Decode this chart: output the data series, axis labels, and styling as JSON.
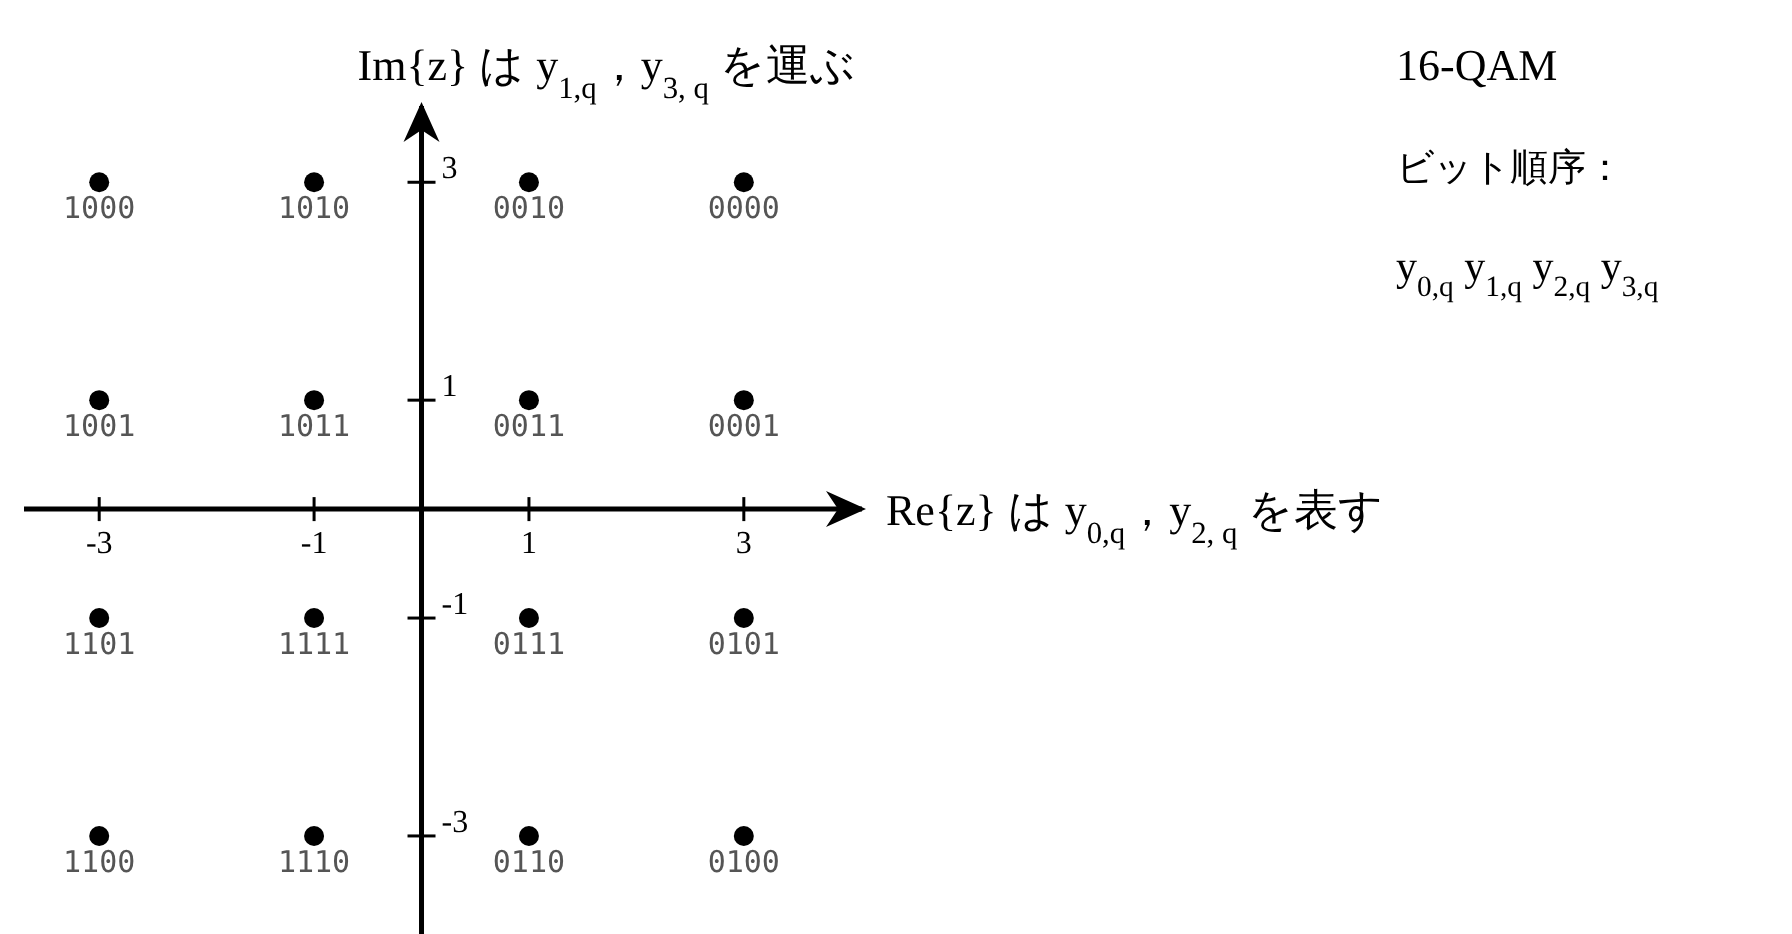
{
  "chart_data": {
    "type": "scatter",
    "title": "16-QAM",
    "subtitle": "ビット順序：",
    "xlabel": "Re{z}  は y$_{0,q}$，y$_{2, q}$ を表す",
    "ylabel": "Im{z}  は y$_{1,q}$，y$_{3, q}$ を運ぶ",
    "x": [
      -3,
      -1,
      1,
      3,
      -3,
      -1,
      1,
      3,
      -3,
      -1,
      1,
      3,
      -3,
      -1,
      1,
      3
    ],
    "values": [
      3,
      3,
      3,
      3,
      1,
      1,
      1,
      1,
      -1,
      -1,
      -1,
      -1,
      -3,
      -3,
      -3,
      -3
    ],
    "color": "#000000",
    "marker": "circle",
    "grid": false,
    "xlim": [
      -3.7,
      4.1
    ],
    "ylim": [
      -3.9,
      3.7
    ],
    "xticks": [
      -3,
      -1,
      1,
      3
    ],
    "yticks": [
      -3,
      -1,
      1,
      3
    ],
    "annotations": [
      "y$_{0,q}$ y$_{1,q}$ y$_{2,q}$ y$_{3,q}$",
      {
        "text": "1000",
        "x": -3,
        "y": 3
      },
      {
        "text": "1010",
        "x": -1,
        "y": 3
      },
      {
        "text": "0010",
        "x": 1,
        "y": 3
      },
      {
        "text": "0000",
        "x": 3,
        "y": 3
      },
      {
        "text": "1001",
        "x": -3,
        "y": 1
      },
      {
        "text": "1011",
        "x": -1,
        "y": 1
      },
      {
        "text": "0011",
        "x": 1,
        "y": 1
      },
      {
        "text": "0001",
        "x": 3,
        "y": 1
      },
      {
        "text": "1101",
        "x": -3,
        "y": -1
      },
      {
        "text": "1111",
        "x": -1,
        "y": -1
      },
      {
        "text": "0111",
        "x": 1,
        "y": -1
      },
      {
        "text": "0101",
        "x": 3,
        "y": -1
      },
      {
        "text": "1100",
        "x": -3,
        "y": -3
      },
      {
        "text": "1110",
        "x": -1,
        "y": -3
      },
      {
        "text": "0110",
        "x": 1,
        "y": -3
      },
      {
        "text": "0100",
        "x": 3,
        "y": -3
      }
    ]
  }
}
